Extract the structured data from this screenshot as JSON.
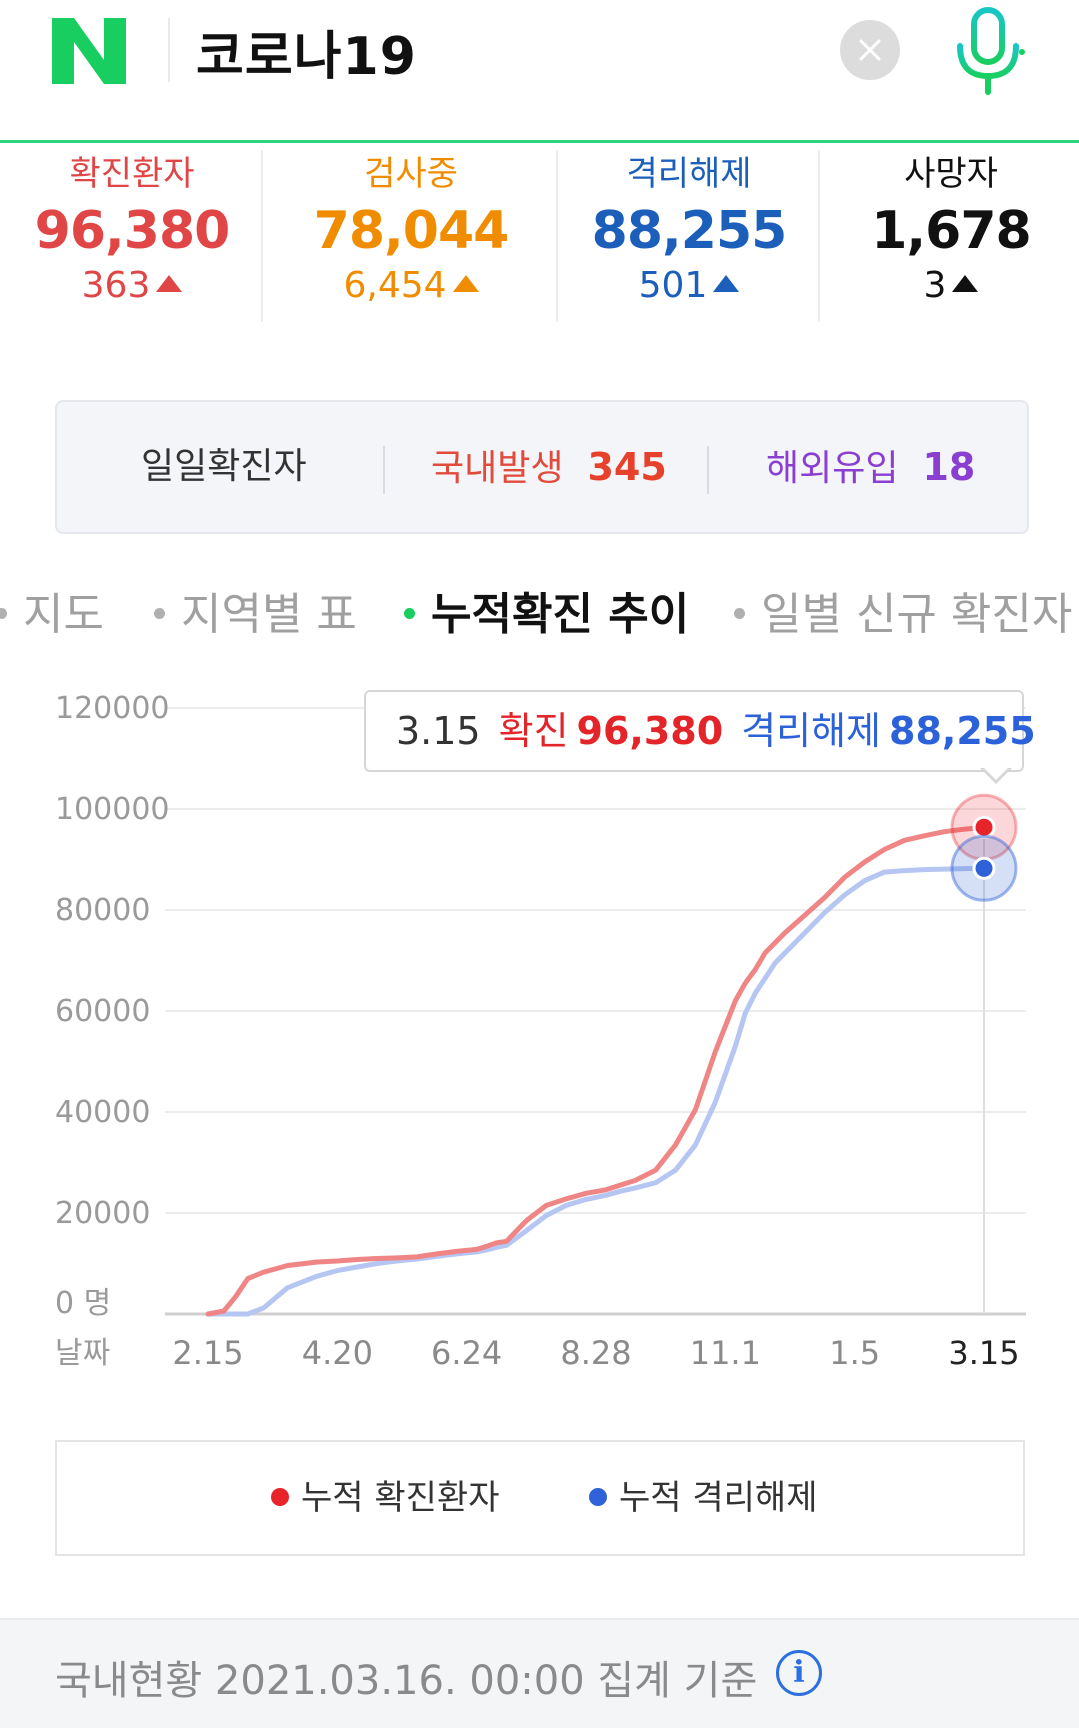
{
  "header": {
    "logo_letter": "N",
    "query": "코로나19",
    "clear_icon": "close-icon",
    "mic_icon": "microphone-icon",
    "brand_color": "#19ce60"
  },
  "stats": [
    {
      "label": "확진환자",
      "value": "96,380",
      "change": "363",
      "color": "#e04646"
    },
    {
      "label": "검사중",
      "value": "78,044",
      "change": "6,454",
      "color": "#f08c00"
    },
    {
      "label": "격리해제",
      "value": "88,255",
      "change": "501",
      "color": "#1c5fbb"
    },
    {
      "label": "사망자",
      "value": "1,678",
      "change": "3",
      "color": "#111111"
    }
  ],
  "daily": {
    "label": "일일확진자",
    "domestic_label": "국내발생",
    "domestic_value": "345",
    "overseas_label": "해외유입",
    "overseas_value": "18"
  },
  "tabs": [
    {
      "label": "지도",
      "active": false
    },
    {
      "label": "지역별 표",
      "active": false
    },
    {
      "label": "누적확진 추이",
      "active": true
    },
    {
      "label": "일별 신규 확진자",
      "active": false
    }
  ],
  "tooltip": {
    "date": "3.15",
    "confirmed_label": "확진",
    "confirmed_value": "96,380",
    "released_label": "격리해제",
    "released_value": "88,255"
  },
  "chart_data": {
    "type": "line",
    "y_unit_label": "명",
    "x_axis_label": "날짜",
    "x_ticks": [
      "2.15",
      "4.20",
      "6.24",
      "8.28",
      "11.1",
      "1.5",
      "3.15"
    ],
    "y_ticks": [
      0,
      20000,
      40000,
      60000,
      80000,
      100000,
      120000
    ],
    "ylim": [
      0,
      120000
    ],
    "x": [
      0,
      8,
      14,
      20,
      28,
      40,
      55,
      65,
      75,
      85,
      95,
      105,
      115,
      125,
      135,
      140,
      145,
      150,
      160,
      170,
      180,
      190,
      200,
      207,
      215,
      225,
      235,
      245,
      255,
      265,
      270,
      275,
      280,
      285,
      290,
      300,
      310,
      320,
      330,
      340,
      350,
      360,
      370,
      380,
      390
    ],
    "series": [
      {
        "name": "누적 확진환자",
        "color": "#ef8585",
        "values": [
          0,
          600,
          3500,
          7000,
          8300,
          9600,
          10300,
          10500,
          10800,
          11000,
          11100,
          11300,
          11900,
          12400,
          12800,
          13400,
          14100,
          14400,
          18500,
          21500,
          22800,
          23900,
          24600,
          25500,
          26500,
          28500,
          33500,
          40500,
          52000,
          62000,
          65500,
          68200,
          71500,
          73500,
          75500,
          79000,
          82500,
          86500,
          89500,
          92000,
          93800,
          94700,
          95500,
          96000,
          96380
        ]
      },
      {
        "name": "누적 격리해제",
        "color": "#b6c6f2",
        "values": [
          0,
          0,
          0,
          0,
          1200,
          5200,
          7500,
          8600,
          9300,
          10000,
          10500,
          10900,
          11400,
          11900,
          12300,
          12700,
          13200,
          13600,
          16500,
          19500,
          21500,
          22700,
          23500,
          24300,
          25000,
          26000,
          28500,
          33500,
          42000,
          53000,
          59500,
          63500,
          66500,
          69500,
          71500,
          75500,
          79500,
          83000,
          85800,
          87500,
          87800,
          88000,
          88100,
          88200,
          88255
        ]
      }
    ]
  },
  "legend": [
    {
      "label": "누적 확진환자",
      "color": "#e8242b"
    },
    {
      "label": "누적 격리해제",
      "color": "#2f62d8"
    }
  ],
  "footer": {
    "text": "국내현황 2021.03.16. 00:00 집계 기준",
    "info_glyph": "i",
    "info_icon": "info-icon"
  }
}
